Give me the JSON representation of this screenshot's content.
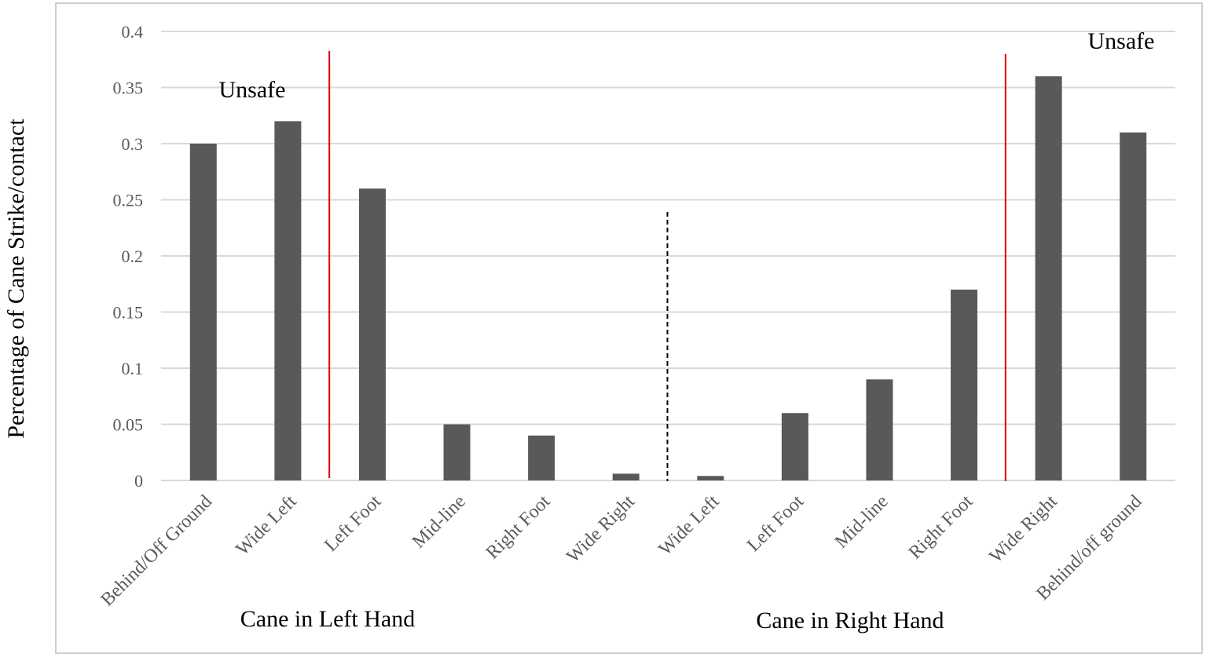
{
  "chart_data": {
    "type": "bar",
    "ylabel": "Percentage of Cane Strike/contact",
    "ylim": [
      0,
      0.4
    ],
    "yticks": [
      "0",
      "0.05",
      "0.1",
      "0.15",
      "0.2",
      "0.25",
      "0.3",
      "0.35",
      "0.4"
    ],
    "grid": true,
    "categories": [
      "Behind/Off Ground",
      "Wide Left",
      "Left Foot",
      "Mid-line",
      "Right Foot",
      "Wide Right",
      "Wide Left",
      "Left Foot",
      "Mid-line",
      "Right Foot",
      "Wide Right",
      "Behind/off ground"
    ],
    "values": [
      0.3,
      0.32,
      0.26,
      0.05,
      0.04,
      0.006,
      0.004,
      0.06,
      0.09,
      0.17,
      0.36,
      0.31
    ],
    "groups": [
      {
        "label": "Cane in Left Hand",
        "categories": [
          0,
          5
        ]
      },
      {
        "label": "Cane in Right Hand",
        "categories": [
          6,
          11
        ]
      }
    ],
    "annotations": [
      {
        "text": "Unsafe",
        "region": "left"
      },
      {
        "text": "Unsafe",
        "region": "right"
      }
    ],
    "colors": {
      "bar": "#595959",
      "grid": "#d9d9d9",
      "unsafe_line": "#e00000",
      "divider": "#000000",
      "border": "#d0d0d0"
    }
  }
}
